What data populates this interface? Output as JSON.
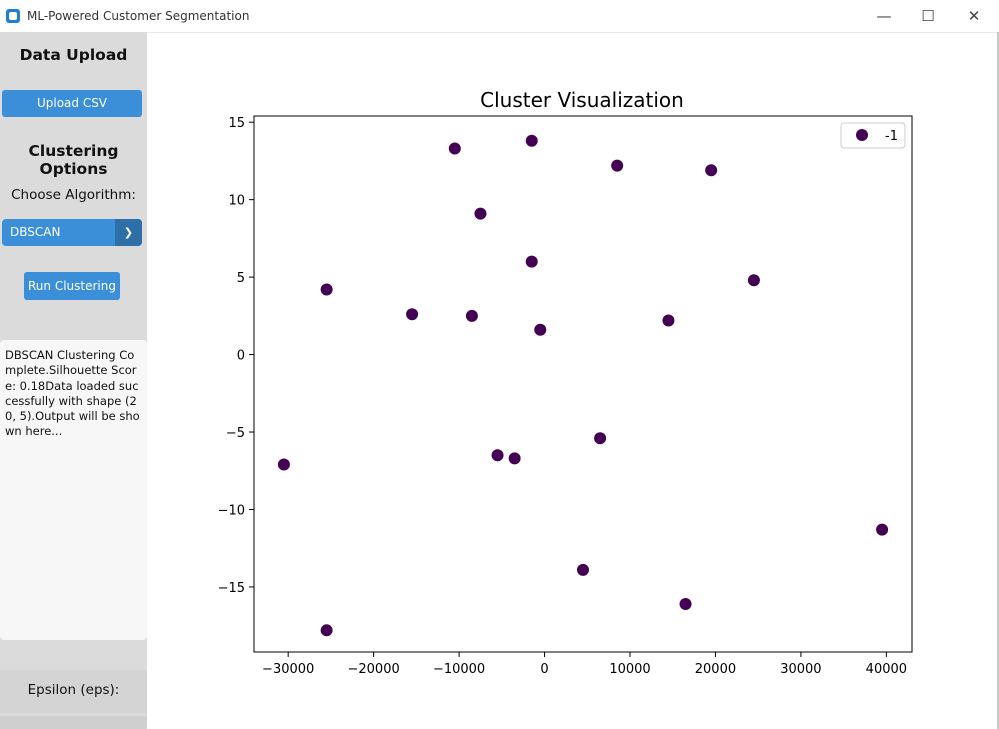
{
  "window": {
    "title": "ML-Powered Customer Segmentation",
    "controls": {
      "minimize": "—",
      "maximize": "☐",
      "close": "✕"
    }
  },
  "sidebar": {
    "data_upload_heading": "Data Upload",
    "upload_button": "Upload CSV",
    "clustering_heading": "Clustering Options",
    "choose_algorithm_label": "Choose Algorithm:",
    "algorithm_selected": "DBSCAN",
    "run_button": "Run Clustering",
    "output_text": "DBSCAN Clustering Complete.Silhouette Score: 0.18Data loaded successfully with shape (20, 5).Output will be shown here...",
    "epsilon_label": "Epsilon (eps):"
  },
  "colors": {
    "sidebar_bg": "#dbdbdb",
    "accent_button": "#3a8fd8",
    "point_color": "#440154"
  },
  "chart_data": {
    "type": "scatter",
    "title": "Cluster Visualization",
    "xlabel": "",
    "ylabel": "",
    "xlim": [
      -34000,
      43000
    ],
    "ylim": [
      -19.2,
      15.4
    ],
    "xticks": [
      -30000,
      -20000,
      -10000,
      0,
      10000,
      20000,
      30000,
      40000
    ],
    "xtick_labels": [
      "−30000",
      "−20000",
      "−10000",
      "0",
      "10000",
      "20000",
      "30000",
      "40000"
    ],
    "yticks": [
      -15,
      -10,
      -5,
      0,
      5,
      10,
      15
    ],
    "ytick_labels": [
      "−15",
      "−10",
      "−5",
      "0",
      "5",
      "10",
      "15"
    ],
    "grid": false,
    "legend_position": "top-right",
    "series": [
      {
        "name": "-1",
        "color": "#440154",
        "points": [
          [
            -30500,
            -7.1
          ],
          [
            -25500,
            4.2
          ],
          [
            -25500,
            -17.8
          ],
          [
            -15500,
            2.6
          ],
          [
            -10500,
            13.3
          ],
          [
            -8500,
            2.5
          ],
          [
            -7500,
            9.1
          ],
          [
            -5500,
            -6.5
          ],
          [
            -3500,
            -6.7
          ],
          [
            -1500,
            13.8
          ],
          [
            -1500,
            6.0
          ],
          [
            -500,
            1.6
          ],
          [
            4500,
            -13.9
          ],
          [
            6500,
            -5.4
          ],
          [
            8500,
            12.2
          ],
          [
            14500,
            2.2
          ],
          [
            16500,
            -16.1
          ],
          [
            19500,
            11.9
          ],
          [
            24500,
            4.8
          ],
          [
            39500,
            -11.3
          ]
        ]
      }
    ]
  }
}
